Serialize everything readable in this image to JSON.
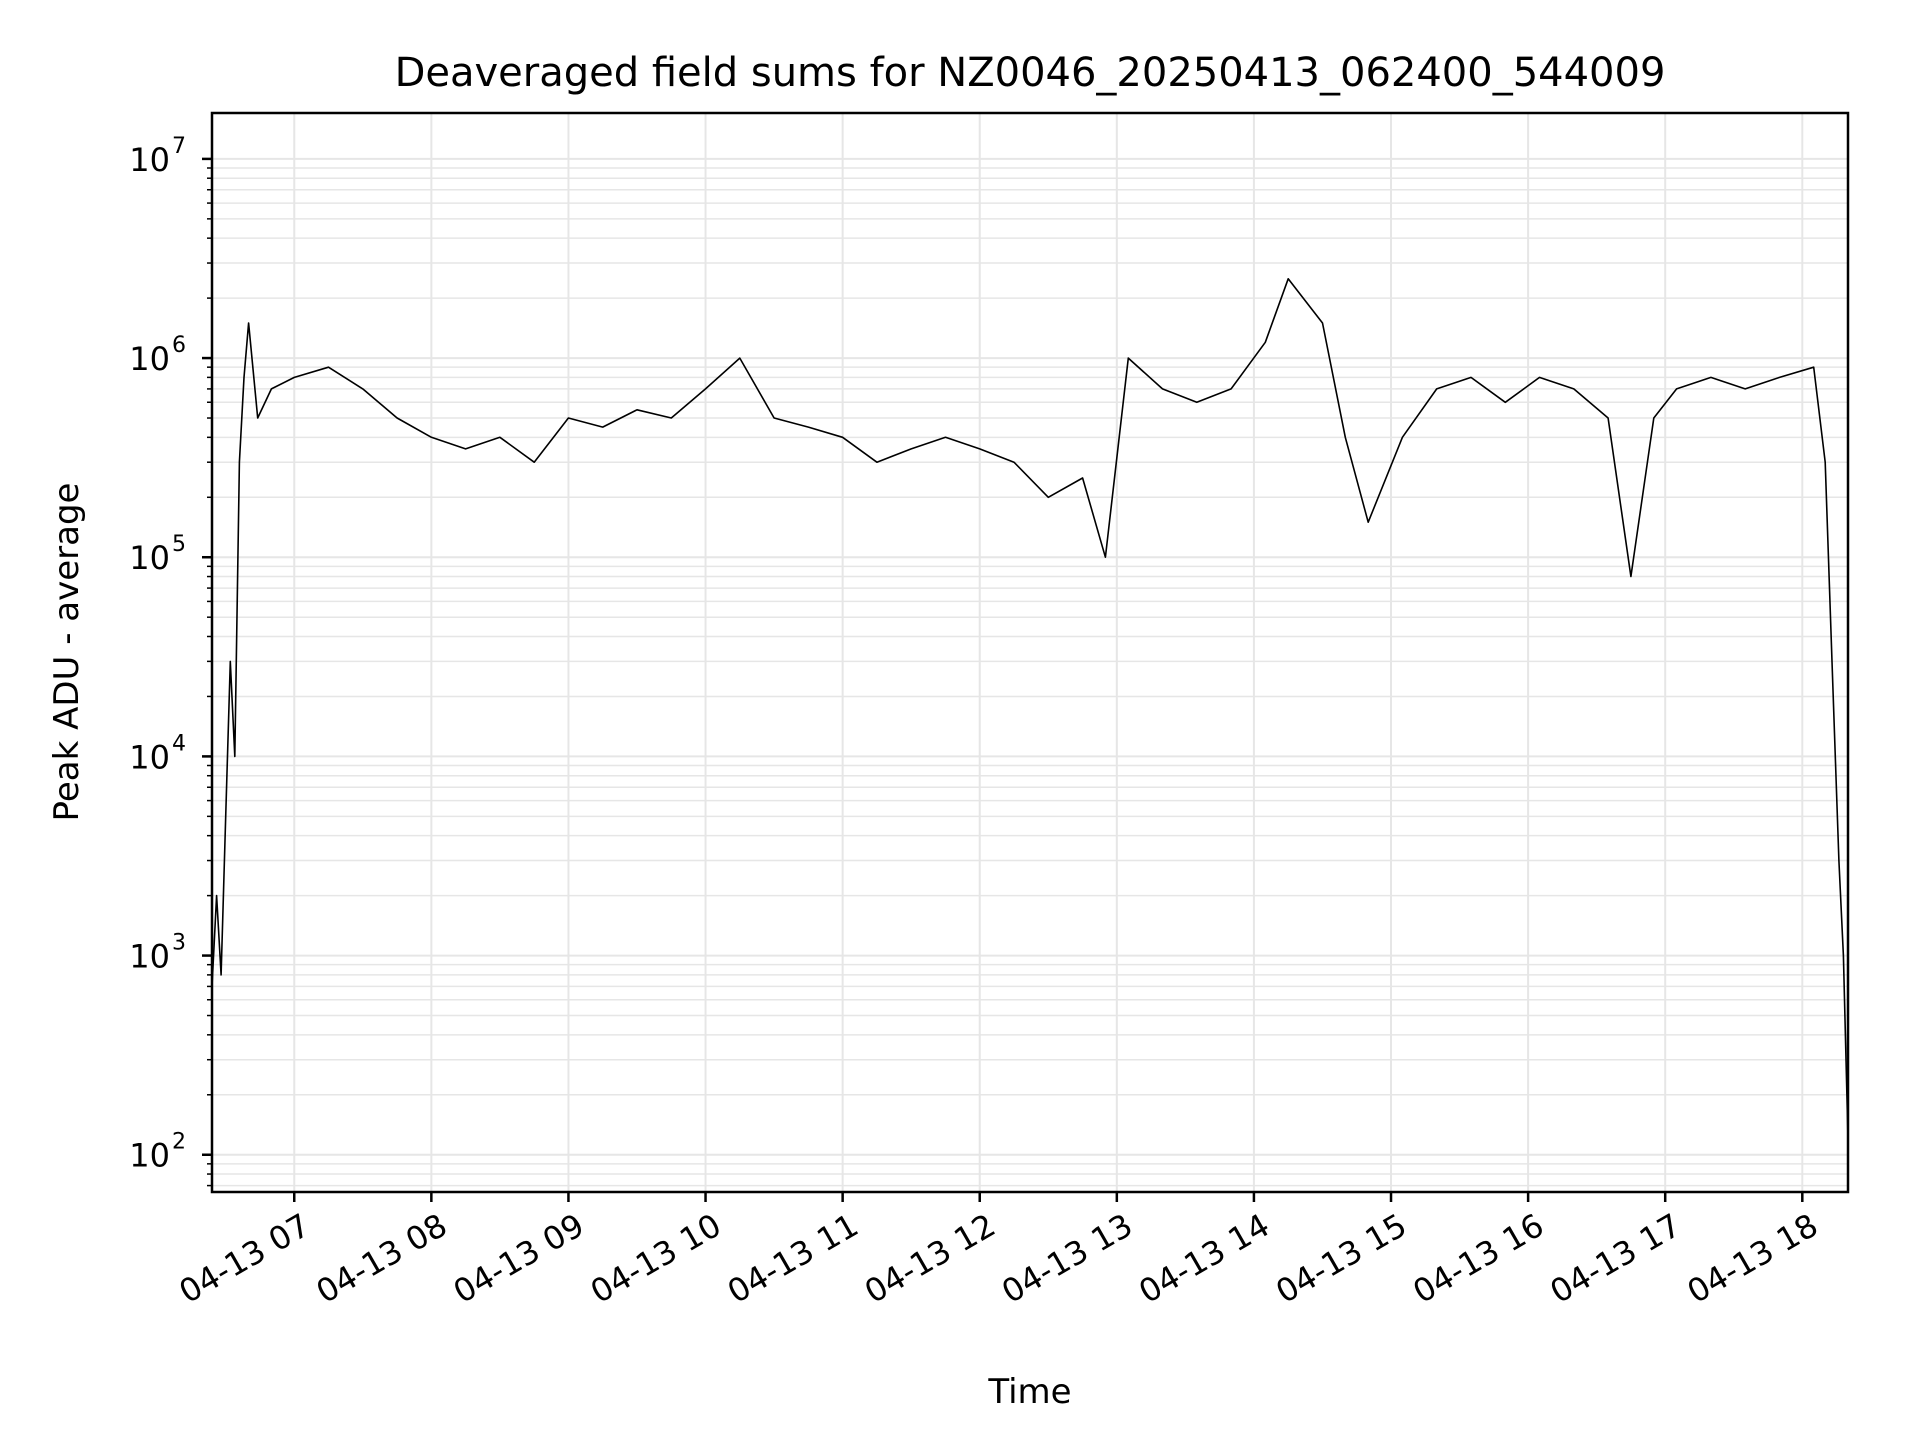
{
  "chart_data": {
    "type": "line",
    "title": "Deaveraged field sums for NZ0046_20250413_062400_544009",
    "xlabel": "Time",
    "ylabel": "Peak ADU - average",
    "y_scale": "log",
    "ylim": [
      65,
      17000000
    ],
    "xlim": [
      "2025-04-13 06:24",
      "2025-04-13 18:20"
    ],
    "x_tick_labels": [
      "04-13 07",
      "04-13 08",
      "04-13 09",
      "04-13 10",
      "04-13 11",
      "04-13 12",
      "04-13 13",
      "04-13 14",
      "04-13 15",
      "04-13 16",
      "04-13 17",
      "04-13 18"
    ],
    "y_ticks": [
      {
        "base": "10",
        "exp": "2",
        "value": 100
      },
      {
        "base": "10",
        "exp": "3",
        "value": 1000
      },
      {
        "base": "10",
        "exp": "4",
        "value": 10000
      },
      {
        "base": "10",
        "exp": "5",
        "value": 100000
      },
      {
        "base": "10",
        "exp": "6",
        "value": 1000000
      },
      {
        "base": "10",
        "exp": "7",
        "value": 10000000
      }
    ],
    "grid": true,
    "line_color": "#000000",
    "grid_color": "#e6e6e6",
    "series": [
      {
        "x": [
          "2025-04-13 06:24",
          "2025-04-13 06:26",
          "2025-04-13 06:28",
          "2025-04-13 06:30",
          "2025-04-13 06:32",
          "2025-04-13 06:34",
          "2025-04-13 06:36",
          "2025-04-13 06:38",
          "2025-04-13 06:40",
          "2025-04-13 06:44",
          "2025-04-13 06:50",
          "2025-04-13 07:00",
          "2025-04-13 07:15",
          "2025-04-13 07:30",
          "2025-04-13 07:45",
          "2025-04-13 08:00",
          "2025-04-13 08:15",
          "2025-04-13 08:30",
          "2025-04-13 08:45",
          "2025-04-13 09:00",
          "2025-04-13 09:15",
          "2025-04-13 09:30",
          "2025-04-13 09:45",
          "2025-04-13 10:00",
          "2025-04-13 10:15",
          "2025-04-13 10:30",
          "2025-04-13 10:45",
          "2025-04-13 11:00",
          "2025-04-13 11:15",
          "2025-04-13 11:30",
          "2025-04-13 11:45",
          "2025-04-13 12:00",
          "2025-04-13 12:15",
          "2025-04-13 12:30",
          "2025-04-13 12:45",
          "2025-04-13 12:55",
          "2025-04-13 13:05",
          "2025-04-13 13:20",
          "2025-04-13 13:35",
          "2025-04-13 13:50",
          "2025-04-13 14:05",
          "2025-04-13 14:15",
          "2025-04-13 14:30",
          "2025-04-13 14:40",
          "2025-04-13 14:50",
          "2025-04-13 15:05",
          "2025-04-13 15:20",
          "2025-04-13 15:35",
          "2025-04-13 15:50",
          "2025-04-13 16:05",
          "2025-04-13 16:20",
          "2025-04-13 16:35",
          "2025-04-13 16:45",
          "2025-04-13 16:55",
          "2025-04-13 17:05",
          "2025-04-13 17:20",
          "2025-04-13 17:35",
          "2025-04-13 17:50",
          "2025-04-13 18:05",
          "2025-04-13 18:10",
          "2025-04-13 18:13",
          "2025-04-13 18:16",
          "2025-04-13 18:18",
          "2025-04-13 18:20"
        ],
        "y": [
          700,
          2000,
          800,
          5000,
          30000,
          10000,
          300000,
          800000,
          1500000,
          500000,
          700000,
          800000,
          900000,
          700000,
          500000,
          400000,
          350000,
          400000,
          300000,
          500000,
          450000,
          550000,
          500000,
          700000,
          1000000,
          500000,
          450000,
          400000,
          300000,
          350000,
          400000,
          350000,
          300000,
          200000,
          250000,
          100000,
          1000000,
          700000,
          600000,
          700000,
          1200000,
          2500000,
          1500000,
          400000,
          150000,
          400000,
          700000,
          800000,
          600000,
          800000,
          700000,
          500000,
          80000,
          500000,
          700000,
          800000,
          700000,
          800000,
          900000,
          300000,
          30000,
          3000,
          1000,
          120
        ]
      }
    ]
  }
}
